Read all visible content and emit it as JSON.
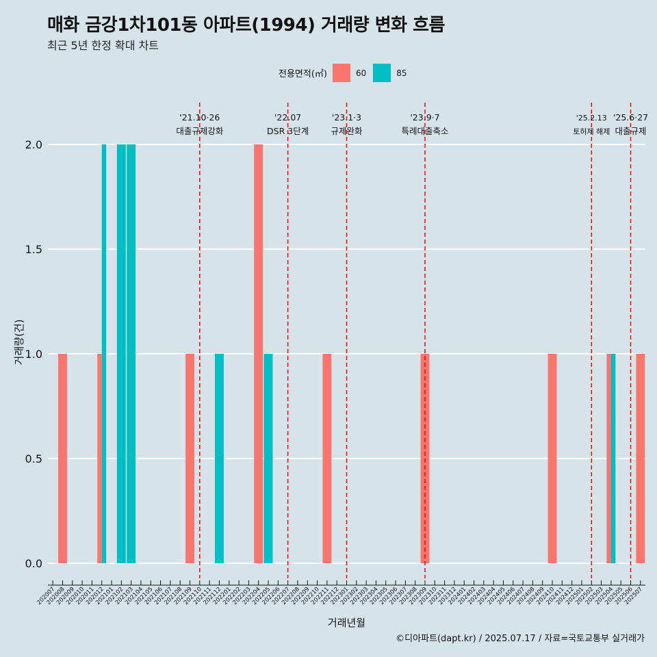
{
  "title": "매화 금강1차101동 아파트(1994) 거래량 변화 흐름",
  "subtitle": "최근 5년 한정 확대 차트",
  "caption": "©디아파트(dapt.kr) / 2025.07.17 / 자료=국토교통부 실거래가",
  "legend": {
    "title": "전용면적(㎡)",
    "items": [
      {
        "label": "60",
        "color": "#f8766d"
      },
      {
        "label": "85",
        "color": "#00bfc4"
      }
    ]
  },
  "chart_data": {
    "type": "bar",
    "xlabel": "거래년월",
    "ylabel": "거래량(건)",
    "ylim": [
      0,
      2.2
    ],
    "yticks": [
      "0.0",
      "0.5",
      "1.0",
      "1.5",
      "2.0"
    ],
    "grid": true,
    "legend_position": "top",
    "categories": [
      "202007",
      "202008",
      "202009",
      "202010",
      "202011",
      "202012",
      "202101",
      "202102",
      "202103",
      "202104",
      "202105",
      "202106",
      "202107",
      "202108",
      "202109",
      "202110",
      "202111",
      "202112",
      "202201",
      "202202",
      "202203",
      "202204",
      "202205",
      "202206",
      "202207",
      "202208",
      "202209",
      "202210",
      "202211",
      "202212",
      "202301",
      "202302",
      "202303",
      "202304",
      "202305",
      "202306",
      "202307",
      "202308",
      "202309",
      "202310",
      "202311",
      "202312",
      "202401",
      "202402",
      "202403",
      "202404",
      "202405",
      "202406",
      "202407",
      "202408",
      "202409",
      "202410",
      "202411",
      "202412",
      "202501",
      "202502",
      "202503",
      "202504",
      "202505",
      "202506",
      "202507"
    ],
    "series": [
      {
        "name": "60",
        "color": "#f8766d",
        "points": [
          {
            "x": "202008",
            "y": 1
          },
          {
            "x": "202012",
            "y": 1
          },
          {
            "x": "202109",
            "y": 1
          },
          {
            "x": "202204",
            "y": 2
          },
          {
            "x": "202211",
            "y": 1
          },
          {
            "x": "202309",
            "y": 1
          },
          {
            "x": "202410",
            "y": 1
          },
          {
            "x": "202504",
            "y": 1
          },
          {
            "x": "202507",
            "y": 1
          }
        ]
      },
      {
        "name": "85",
        "color": "#00bfc4",
        "points": [
          {
            "x": "202012",
            "y": 2
          },
          {
            "x": "202102",
            "y": 2
          },
          {
            "x": "202103",
            "y": 2
          },
          {
            "x": "202112",
            "y": 1
          },
          {
            "x": "202205",
            "y": 1
          },
          {
            "x": "202504",
            "y": 1
          }
        ]
      }
    ],
    "annotations": [
      {
        "x": "202110",
        "date": "'21.10·26",
        "label": "대출규제강화"
      },
      {
        "x": "202207",
        "date": "'22.07",
        "label": "DSR 3단계"
      },
      {
        "x": "202301",
        "date": "'23.1·3",
        "label": "규제완화"
      },
      {
        "x": "202309",
        "date": "'23.9·7",
        "label": "특례대출축소"
      },
      {
        "x": "202502",
        "date": "'25.2.13",
        "label": "토허제 해제"
      },
      {
        "x": "202506",
        "date": "'25.6·27",
        "label": "대출규제"
      }
    ]
  }
}
